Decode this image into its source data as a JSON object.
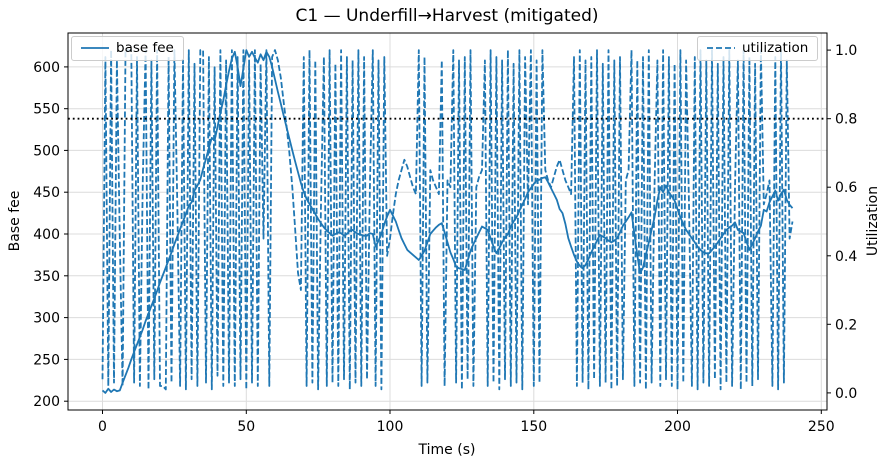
{
  "figure": {
    "title": "C1 — Underfill→Harvest (mitigated)"
  },
  "chart_data": {
    "type": "line",
    "title": "C1 — Underfill→Harvest (mitigated)",
    "xlabel": "Time (s)",
    "ylabel_left": "Base fee",
    "ylabel_right": "Utilization",
    "xlim": [
      -12,
      252
    ],
    "ylim_left": [
      189.5,
      640.5
    ],
    "ylim_right": [
      -0.05,
      1.05
    ],
    "xticks": [
      0,
      50,
      100,
      150,
      200,
      250
    ],
    "xtick_labels": [
      "0",
      "50",
      "100",
      "150",
      "200",
      "250"
    ],
    "yticks_left": [
      200,
      250,
      300,
      350,
      400,
      450,
      500,
      550,
      600
    ],
    "ytick_labels_left": [
      "200",
      "250",
      "300",
      "350",
      "400",
      "450",
      "500",
      "550",
      "600"
    ],
    "yticks_right": [
      0.0,
      0.2,
      0.4,
      0.6,
      0.8,
      1.0
    ],
    "ytick_labels_right": [
      "0.0",
      "0.2",
      "0.4",
      "0.6",
      "0.8",
      "1.0"
    ],
    "grid": true,
    "threshold_line": {
      "axis": "right",
      "value": 0.8,
      "style": "dotted",
      "color": "#000000"
    },
    "legends": [
      {
        "position": "upper-left",
        "entries": [
          {
            "label": "base fee",
            "style": "solid"
          }
        ]
      },
      {
        "position": "upper-right",
        "entries": [
          {
            "label": "utilization",
            "style": "dashed"
          }
        ]
      }
    ],
    "series": [
      {
        "name": "base fee",
        "axis": "left",
        "style": "solid",
        "color": "#1f77b4",
        "x_start": 0,
        "x_step": 1,
        "values": [
          213,
          210,
          215,
          211,
          214,
          212,
          213,
          222,
          231,
          240,
          250,
          259,
          268,
          277,
          286,
          296,
          305,
          314,
          323,
          332,
          342,
          351,
          360,
          369,
          378,
          388,
          397,
          406,
          415,
          424,
          434,
          438,
          452,
          458,
          465,
          478,
          490,
          503,
          515,
          512,
          528,
          545,
          560,
          578,
          595,
          610,
          618,
          600,
          577,
          598,
          620,
          612,
          618,
          611,
          605,
          615,
          608,
          618,
          612,
          600,
          585,
          570,
          556,
          542,
          528,
          514,
          500,
          487,
          474,
          461,
          450,
          442,
          436,
          430,
          424,
          418,
          413,
          408,
          404,
          401,
          398,
          400,
          402,
          401,
          398,
          400,
          404,
          405,
          402,
          400,
          399,
          398,
          398,
          401,
          400,
          385,
          392,
          400,
          412,
          421,
          429,
          422,
          415,
          405,
          395,
          388,
          381,
          378,
          375,
          372,
          369,
          374,
          380,
          390,
          400,
          404,
          408,
          411,
          413,
          402,
          390,
          378,
          370,
          361,
          359,
          358,
          357,
          368,
          380,
          388,
          395,
          402,
          409,
          407,
          405,
          395,
          385,
          377,
          383,
          390,
          396,
          400,
          409,
          415,
          420,
          428,
          435,
          442,
          450,
          455,
          460,
          464,
          465,
          467,
          468,
          462,
          455,
          448,
          441,
          430,
          425,
          412,
          395,
          385,
          375,
          367,
          362,
          359,
          363,
          370,
          378,
          385,
          392,
          399,
          397,
          395,
          392,
          390,
          392,
          395,
          402,
          410,
          415,
          420,
          426,
          400,
          375,
          353,
          360,
          375,
          390,
          405,
          420,
          440,
          456,
          450,
          458,
          450,
          445,
          440,
          430,
          420,
          412,
          405,
          400,
          395,
          390,
          385,
          381,
          378,
          377,
          377,
          381,
          385,
          390,
          395,
          400,
          405,
          408,
          410,
          414,
          405,
          403,
          401,
          391,
          381,
          388,
          395,
          403,
          410,
          429,
          427,
          438,
          445,
          452,
          440,
          448,
          453,
          441,
          435,
          431
        ]
      },
      {
        "name": "utilization",
        "axis": "right",
        "style": "dashed",
        "color": "#1f77b4",
        "x_start": 0,
        "x_step": 1,
        "values": [
          0.04,
          0.98,
          0.02,
          1.0,
          0.03,
          0.97,
          0.45,
          0.02,
          1.0,
          1.0,
          1.0,
          0.03,
          0.98,
          0.02,
          0.62,
          1.0,
          0.01,
          0.97,
          0.04,
          1.0,
          0.02,
          0.02,
          0.01,
          0.98,
          0.03,
          1.0,
          0.55,
          0.02,
          0.97,
          0.01,
          1.0,
          0.04,
          0.96,
          0.02,
          1.0,
          1.0,
          0.03,
          0.98,
          0.01,
          0.95,
          0.05,
          1.0,
          0.02,
          0.97,
          0.03,
          1.0,
          0.02,
          0.98,
          0.04,
          1.0,
          0.01,
          0.97,
          0.03,
          1.0,
          0.02,
          0.96,
          0.45,
          1.0,
          0.02,
          0.98,
          1.0,
          0.97,
          0.92,
          0.85,
          0.78,
          0.7,
          0.6,
          0.48,
          0.35,
          0.3,
          0.98,
          0.02,
          1.0,
          0.03,
          0.97,
          0.01,
          0.55,
          0.98,
          0.02,
          1.0,
          0.03,
          0.96,
          0.02,
          1.0,
          0.04,
          0.98,
          0.01,
          0.97,
          0.03,
          1.0,
          0.02,
          0.98,
          0.04,
          0.6,
          1.0,
          0.02,
          0.97,
          0.01,
          0.98,
          0.4,
          0.45,
          0.52,
          0.58,
          0.62,
          0.65,
          0.68,
          0.66,
          0.63,
          0.6,
          0.58,
          1.0,
          0.02,
          0.98,
          0.03,
          0.65,
          0.62,
          0.6,
          0.58,
          0.97,
          0.02,
          0.62,
          0.6,
          1.0,
          0.03,
          0.97,
          0.01,
          0.98,
          0.04,
          1.0,
          0.02,
          0.6,
          0.63,
          0.65,
          0.97,
          0.02,
          1.0,
          0.03,
          0.98,
          0.01,
          0.97,
          0.04,
          1.0,
          0.02,
          0.96,
          0.03,
          1.0,
          0.01,
          0.98,
          0.55,
          1.0,
          0.02,
          0.97,
          0.03,
          1.0,
          0.65,
          0.62,
          0.6,
          0.63,
          0.66,
          0.68,
          0.65,
          0.62,
          0.6,
          0.58,
          0.98,
          0.02,
          1.0,
          0.03,
          0.97,
          0.01,
          0.98,
          0.04,
          1.0,
          0.02,
          0.96,
          0.03,
          1.0,
          0.01,
          0.97,
          0.02,
          0.98,
          0.04,
          0.62,
          0.65,
          1.0,
          0.02,
          0.97,
          0.03,
          0.98,
          0.01,
          1.0,
          0.03,
          0.6,
          0.97,
          0.02,
          1.0,
          0.04,
          0.98,
          0.02,
          0.96,
          0.01,
          1.0,
          0.03,
          0.97,
          0.55,
          0.02,
          0.98,
          0.01,
          1.0,
          0.03,
          0.97,
          0.02,
          1.0,
          0.04,
          0.96,
          0.01,
          0.98,
          0.03,
          1.0,
          0.02,
          0.6,
          0.97,
          0.01,
          1.0,
          0.03,
          0.98,
          0.02,
          0.96,
          0.04,
          1.0,
          0.55,
          0.58,
          0.62,
          0.02,
          0.98,
          0.01,
          1.0,
          0.03,
          0.97,
          0.45,
          0.5
        ]
      }
    ],
    "colors": {
      "line": "#1f77b4",
      "grid": "#dcdcdc",
      "spine": "#000000",
      "text": "#000000",
      "threshold": "#000000"
    }
  }
}
